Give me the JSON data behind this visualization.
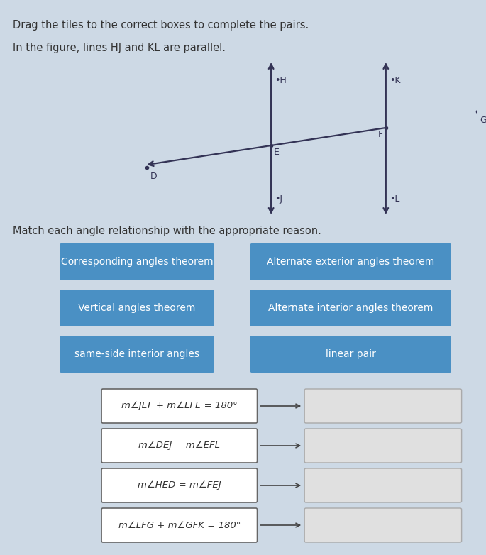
{
  "background_color": "#cdd9e5",
  "title_text": "Drag the tiles to the correct boxes to complete the pairs.",
  "subtitle_text": "In the figure, lines HJ and KL are parallel.",
  "match_text": "Match each angle relationship with the appropriate reason.",
  "blue_buttons_left": [
    "Corresponding angles theorem",
    "Vertical angles theorem",
    "same-side interior angles"
  ],
  "blue_buttons_right": [
    "Alternate exterior angles theorem",
    "Alternate interior angles theorem",
    "linear pair"
  ],
  "button_color": "#4a90c4",
  "button_text_color": "#ffffff",
  "equation_boxes": [
    "m∠JEF + m∠LFE = 180°",
    "m∠DEJ = m∠EFL",
    "m∠HED = m∠FEJ",
    "m∠LFG + m∠GFK = 180°"
  ],
  "equation_box_color": "#ffffff",
  "equation_text_color": "#333333",
  "answer_box_color": "#e0e0e0",
  "line_color": "#333355"
}
